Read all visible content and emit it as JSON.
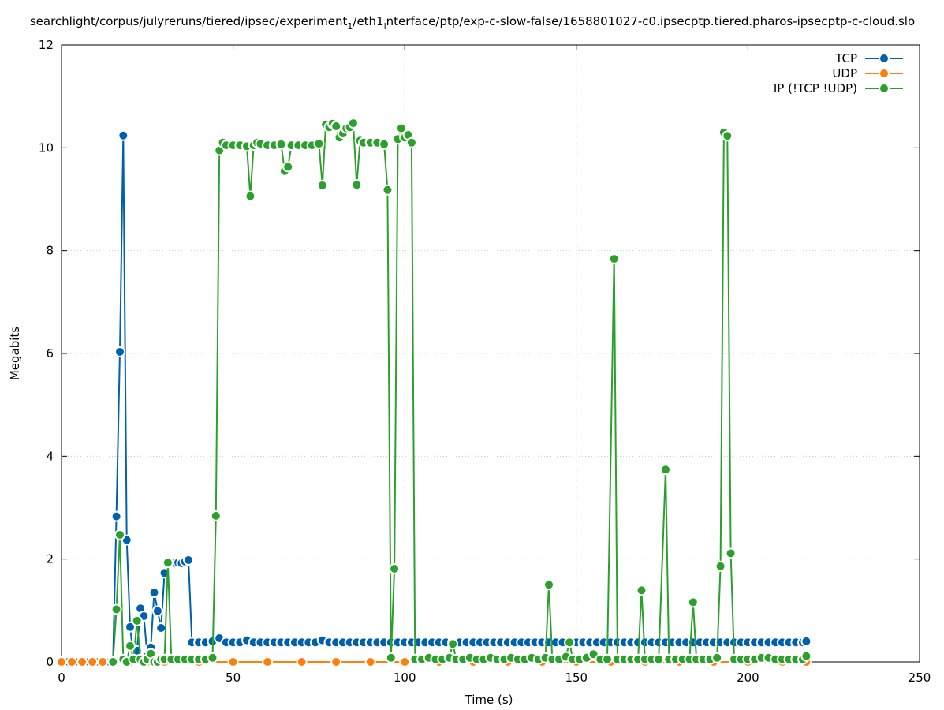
{
  "chart_data": {
    "type": "line",
    "title_main": "searchlight/corpus/julyreruns/tiered/ipsec/experiment",
    "title_sub1": "1",
    "title_mid": "/eth1",
    "title_sub2": "i",
    "title_rest": "nterface/ptp/exp-c-slow-false/1658801027-c0.ipsecptp.tiered.pharos-ipsecptp-c-cloud.slo",
    "xlabel": "Time (s)",
    "ylabel": "Megabits",
    "xlim": [
      0,
      250
    ],
    "ylim": [
      0,
      12
    ],
    "xticks": [
      0,
      50,
      100,
      150,
      200,
      250
    ],
    "yticks": [
      0,
      2,
      4,
      6,
      8,
      10,
      12
    ],
    "grid": true,
    "legend_position": "top-right",
    "series": [
      {
        "name": "TCP",
        "color": "#0060ad",
        "points": [
          [
            0,
            0
          ],
          [
            2,
            0
          ],
          [
            4,
            0
          ],
          [
            6,
            0
          ],
          [
            8,
            0
          ],
          [
            10,
            0
          ],
          [
            12,
            0
          ],
          [
            14,
            0
          ],
          [
            15,
            0.02
          ],
          [
            16,
            2.83
          ],
          [
            17,
            6.03
          ],
          [
            18,
            10.24
          ],
          [
            19,
            2.37
          ],
          [
            20,
            0.68
          ],
          [
            21,
            0.05
          ],
          [
            22,
            0.22
          ],
          [
            23,
            1.04
          ],
          [
            24,
            0.89
          ],
          [
            25,
            0.11
          ],
          [
            26,
            0.28
          ],
          [
            27,
            1.35
          ],
          [
            28,
            0.99
          ],
          [
            29,
            0.66
          ],
          [
            30,
            1.73
          ],
          [
            31,
            1.92
          ],
          [
            32,
            1.93
          ],
          [
            33,
            1.92
          ],
          [
            34,
            1.93
          ],
          [
            35,
            1.92
          ],
          [
            36,
            1.95
          ],
          [
            37,
            1.98
          ],
          [
            38,
            0.38
          ],
          [
            40,
            0.38
          ],
          [
            42,
            0.38
          ],
          [
            44,
            0.4
          ],
          [
            46,
            0.46
          ],
          [
            48,
            0.38
          ],
          [
            50,
            0.38
          ],
          [
            52,
            0.38
          ],
          [
            54,
            0.42
          ],
          [
            56,
            0.38
          ],
          [
            58,
            0.38
          ],
          [
            60,
            0.38
          ],
          [
            62,
            0.38
          ],
          [
            64,
            0.38
          ],
          [
            66,
            0.38
          ],
          [
            68,
            0.38
          ],
          [
            70,
            0.38
          ],
          [
            72,
            0.38
          ],
          [
            74,
            0.38
          ],
          [
            76,
            0.42
          ],
          [
            78,
            0.38
          ],
          [
            80,
            0.38
          ],
          [
            82,
            0.38
          ],
          [
            84,
            0.38
          ],
          [
            86,
            0.38
          ],
          [
            88,
            0.38
          ],
          [
            90,
            0.38
          ],
          [
            92,
            0.38
          ],
          [
            94,
            0.38
          ],
          [
            96,
            0.38
          ],
          [
            98,
            0.38
          ],
          [
            100,
            0.38
          ],
          [
            102,
            0.38
          ],
          [
            104,
            0.38
          ],
          [
            106,
            0.38
          ],
          [
            108,
            0.38
          ],
          [
            110,
            0.38
          ],
          [
            112,
            0.38
          ],
          [
            114,
            0.38
          ],
          [
            116,
            0.38
          ],
          [
            118,
            0.38
          ],
          [
            120,
            0.38
          ],
          [
            122,
            0.38
          ],
          [
            124,
            0.38
          ],
          [
            126,
            0.38
          ],
          [
            128,
            0.38
          ],
          [
            130,
            0.38
          ],
          [
            132,
            0.38
          ],
          [
            134,
            0.38
          ],
          [
            136,
            0.38
          ],
          [
            138,
            0.38
          ],
          [
            140,
            0.38
          ],
          [
            142,
            0.38
          ],
          [
            144,
            0.38
          ],
          [
            146,
            0.38
          ],
          [
            148,
            0.38
          ],
          [
            150,
            0.38
          ],
          [
            152,
            0.38
          ],
          [
            154,
            0.38
          ],
          [
            156,
            0.38
          ],
          [
            158,
            0.38
          ],
          [
            160,
            0.38
          ],
          [
            162,
            0.38
          ],
          [
            164,
            0.38
          ],
          [
            166,
            0.38
          ],
          [
            168,
            0.38
          ],
          [
            170,
            0.38
          ],
          [
            172,
            0.38
          ],
          [
            174,
            0.38
          ],
          [
            176,
            0.38
          ],
          [
            178,
            0.38
          ],
          [
            180,
            0.38
          ],
          [
            182,
            0.38
          ],
          [
            184,
            0.38
          ],
          [
            186,
            0.38
          ],
          [
            188,
            0.38
          ],
          [
            190,
            0.38
          ],
          [
            192,
            0.38
          ],
          [
            194,
            0.38
          ],
          [
            196,
            0.38
          ],
          [
            198,
            0.38
          ],
          [
            200,
            0.38
          ],
          [
            202,
            0.38
          ],
          [
            204,
            0.38
          ],
          [
            206,
            0.38
          ],
          [
            208,
            0.38
          ],
          [
            210,
            0.38
          ],
          [
            212,
            0.38
          ],
          [
            214,
            0.38
          ],
          [
            216,
            0.38
          ],
          [
            217,
            0.4
          ]
        ]
      },
      {
        "name": "UDP",
        "color": "#ff7f0e",
        "points": [
          [
            0,
            0
          ],
          [
            3,
            0
          ],
          [
            6,
            0
          ],
          [
            9,
            0
          ],
          [
            12,
            0
          ],
          [
            15,
            0
          ],
          [
            20,
            0
          ],
          [
            25,
            0
          ],
          [
            30,
            0
          ],
          [
            40,
            0
          ],
          [
            50,
            0
          ],
          [
            60,
            0
          ],
          [
            70,
            0
          ],
          [
            80,
            0
          ],
          [
            90,
            0
          ],
          [
            100,
            0
          ],
          [
            110,
            0
          ],
          [
            120,
            0
          ],
          [
            130,
            0
          ],
          [
            140,
            0
          ],
          [
            150,
            0
          ],
          [
            160,
            0
          ],
          [
            170,
            0
          ],
          [
            180,
            0
          ],
          [
            190,
            0
          ],
          [
            200,
            0
          ],
          [
            210,
            0
          ],
          [
            217,
            0
          ]
        ]
      },
      {
        "name": "IP (!TCP  !UDP)",
        "color": "#2ca02c",
        "points": [
          [
            15,
            0
          ],
          [
            16,
            1.02
          ],
          [
            17,
            2.47
          ],
          [
            18,
            0.05
          ],
          [
            19,
            0
          ],
          [
            20,
            0.31
          ],
          [
            21,
            0.05
          ],
          [
            22,
            0.8
          ],
          [
            23,
            0.05
          ],
          [
            24,
            0.0
          ],
          [
            25,
            0.05
          ],
          [
            26,
            0.16
          ],
          [
            27,
            0.0
          ],
          [
            28,
            0.0
          ],
          [
            29,
            0.05
          ],
          [
            30,
            0.05
          ],
          [
            31,
            1.93
          ],
          [
            32,
            0.05
          ],
          [
            34,
            0.05
          ],
          [
            36,
            0.05
          ],
          [
            38,
            0.05
          ],
          [
            40,
            0.05
          ],
          [
            42,
            0.05
          ],
          [
            44,
            0.08
          ],
          [
            45,
            2.84
          ],
          [
            46,
            9.95
          ],
          [
            47,
            10.1
          ],
          [
            48,
            10.05
          ],
          [
            50,
            10.05
          ],
          [
            52,
            10.05
          ],
          [
            54,
            10.03
          ],
          [
            55,
            9.06
          ],
          [
            56,
            10.05
          ],
          [
            57,
            10.1
          ],
          [
            58,
            10.08
          ],
          [
            60,
            10.05
          ],
          [
            62,
            10.05
          ],
          [
            64,
            10.07
          ],
          [
            65,
            9.55
          ],
          [
            66,
            9.63
          ],
          [
            67,
            10.05
          ],
          [
            69,
            10.05
          ],
          [
            71,
            10.05
          ],
          [
            73,
            10.05
          ],
          [
            75,
            10.08
          ],
          [
            76,
            9.27
          ],
          [
            77,
            10.45
          ],
          [
            78,
            10.4
          ],
          [
            79,
            10.47
          ],
          [
            80,
            10.42
          ],
          [
            81,
            10.2
          ],
          [
            82,
            10.28
          ],
          [
            83,
            10.38
          ],
          [
            84,
            10.4
          ],
          [
            85,
            10.48
          ],
          [
            86,
            9.28
          ],
          [
            87,
            10.14
          ],
          [
            88,
            10.1
          ],
          [
            90,
            10.1
          ],
          [
            92,
            10.1
          ],
          [
            94,
            10.07
          ],
          [
            95,
            9.18
          ],
          [
            96,
            0.08
          ],
          [
            97,
            1.81
          ],
          [
            98,
            10.17
          ],
          [
            99,
            10.38
          ],
          [
            100,
            10.2
          ],
          [
            101,
            10.25
          ],
          [
            102,
            10.1
          ],
          [
            103,
            0.05
          ],
          [
            105,
            0.05
          ],
          [
            107,
            0.08
          ],
          [
            109,
            0.05
          ],
          [
            111,
            0.05
          ],
          [
            113,
            0.08
          ],
          [
            114,
            0.35
          ],
          [
            115,
            0.05
          ],
          [
            117,
            0.05
          ],
          [
            119,
            0.08
          ],
          [
            121,
            0.05
          ],
          [
            123,
            0.05
          ],
          [
            125,
            0.08
          ],
          [
            127,
            0.05
          ],
          [
            129,
            0.05
          ],
          [
            131,
            0.08
          ],
          [
            133,
            0.05
          ],
          [
            135,
            0.05
          ],
          [
            137,
            0.08
          ],
          [
            139,
            0.05
          ],
          [
            141,
            0.08
          ],
          [
            142,
            1.5
          ],
          [
            143,
            0.05
          ],
          [
            145,
            0.05
          ],
          [
            147,
            0.1
          ],
          [
            148,
            0.38
          ],
          [
            149,
            0.05
          ],
          [
            151,
            0.05
          ],
          [
            153,
            0.08
          ],
          [
            155,
            0.15
          ],
          [
            157,
            0.05
          ],
          [
            159,
            0.05
          ],
          [
            161,
            7.84
          ],
          [
            162,
            0.05
          ],
          [
            164,
            0.05
          ],
          [
            166,
            0.05
          ],
          [
            168,
            0.05
          ],
          [
            169,
            1.39
          ],
          [
            170,
            0.05
          ],
          [
            172,
            0.05
          ],
          [
            174,
            0.05
          ],
          [
            176,
            3.74
          ],
          [
            177,
            0.05
          ],
          [
            179,
            0.05
          ],
          [
            181,
            0.05
          ],
          [
            183,
            0.05
          ],
          [
            184,
            1.16
          ],
          [
            185,
            0.05
          ],
          [
            187,
            0.05
          ],
          [
            189,
            0.05
          ],
          [
            191,
            0.08
          ],
          [
            192,
            1.86
          ],
          [
            193,
            10.3
          ],
          [
            194,
            10.23
          ],
          [
            195,
            2.11
          ],
          [
            196,
            0.05
          ],
          [
            198,
            0.05
          ],
          [
            200,
            0.05
          ],
          [
            202,
            0.05
          ],
          [
            204,
            0.08
          ],
          [
            206,
            0.08
          ],
          [
            208,
            0.05
          ],
          [
            210,
            0.05
          ],
          [
            212,
            0.05
          ],
          [
            214,
            0.05
          ],
          [
            216,
            0.05
          ],
          [
            217,
            0.11
          ]
        ]
      }
    ]
  }
}
